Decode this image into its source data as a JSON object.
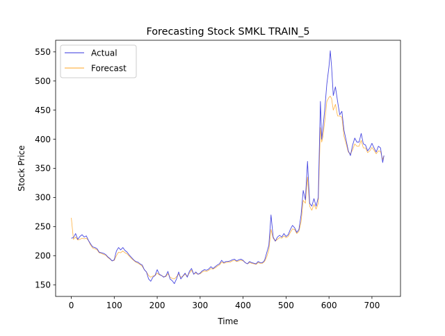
{
  "chart_data": {
    "type": "line",
    "title": "Forecasting Stock SMKL TRAIN_5",
    "xlabel": "Time",
    "ylabel": "Stock Price",
    "xlim": [
      -36.5,
      766.5
    ],
    "ylim": [
      130,
      570
    ],
    "xticks": [
      0,
      100,
      200,
      300,
      400,
      500,
      600,
      700
    ],
    "yticks": [
      150,
      200,
      250,
      300,
      350,
      400,
      450,
      500,
      550
    ],
    "legend_position": "upper-left",
    "grid": false,
    "series": [
      {
        "name": "Actual",
        "color": "#3333dd",
        "x": [
          0,
          5,
          10,
          15,
          20,
          25,
          30,
          35,
          40,
          45,
          50,
          55,
          60,
          65,
          70,
          75,
          80,
          85,
          90,
          95,
          100,
          105,
          110,
          115,
          120,
          125,
          130,
          135,
          140,
          145,
          150,
          155,
          160,
          165,
          170,
          175,
          180,
          185,
          190,
          195,
          200,
          205,
          210,
          215,
          220,
          225,
          230,
          235,
          240,
          245,
          250,
          255,
          260,
          265,
          270,
          275,
          280,
          285,
          290,
          295,
          300,
          305,
          310,
          315,
          320,
          325,
          330,
          335,
          340,
          345,
          350,
          355,
          360,
          365,
          370,
          375,
          380,
          385,
          390,
          395,
          400,
          405,
          410,
          415,
          420,
          425,
          430,
          435,
          440,
          445,
          450,
          455,
          460,
          465,
          470,
          475,
          480,
          485,
          490,
          495,
          500,
          505,
          510,
          515,
          520,
          525,
          530,
          535,
          540,
          545,
          550,
          555,
          560,
          565,
          570,
          575,
          580,
          583,
          586,
          590,
          595,
          600,
          603,
          606,
          610,
          615,
          620,
          625,
          630,
          635,
          640,
          645,
          650,
          655,
          660,
          665,
          670,
          675,
          680,
          685,
          690,
          695,
          700,
          705,
          710,
          715,
          720,
          725,
          728
        ],
        "values": [
          230,
          231,
          238,
          228,
          233,
          236,
          232,
          234,
          226,
          220,
          215,
          214,
          212,
          206,
          205,
          204,
          202,
          198,
          195,
          191,
          193,
          208,
          214,
          210,
          214,
          209,
          206,
          201,
          197,
          193,
          190,
          189,
          186,
          184,
          176,
          172,
          160,
          156,
          163,
          166,
          176,
          168,
          166,
          163,
          165,
          173,
          160,
          157,
          152,
          160,
          172,
          160,
          165,
          170,
          163,
          173,
          178,
          168,
          172,
          168,
          170,
          174,
          176,
          175,
          177,
          181,
          178,
          181,
          184,
          186,
          192,
          188,
          190,
          190,
          191,
          193,
          194,
          191,
          193,
          194,
          192,
          188,
          186,
          190,
          188,
          187,
          186,
          190,
          188,
          188,
          192,
          205,
          218,
          270,
          232,
          225,
          232,
          235,
          232,
          238,
          233,
          236,
          245,
          252,
          248,
          240,
          245,
          270,
          312,
          296,
          362,
          290,
          285,
          298,
          285,
          300,
          465,
          400,
          420,
          450,
          495,
          525,
          552,
          525,
          475,
          490,
          465,
          442,
          448,
          415,
          398,
          380,
          372,
          390,
          402,
          395,
          395,
          410,
          392,
          390,
          380,
          385,
          393,
          385,
          378,
          388,
          385,
          360,
          372
        ]
      },
      {
        "name": "Forecast",
        "color": "#ffa520",
        "x": [
          0,
          5,
          10,
          15,
          20,
          25,
          30,
          35,
          40,
          45,
          50,
          55,
          60,
          65,
          70,
          75,
          80,
          85,
          90,
          95,
          100,
          105,
          110,
          115,
          120,
          125,
          130,
          135,
          140,
          145,
          150,
          155,
          160,
          165,
          170,
          175,
          180,
          185,
          190,
          195,
          200,
          205,
          210,
          215,
          220,
          225,
          230,
          235,
          240,
          245,
          250,
          255,
          260,
          265,
          270,
          275,
          280,
          285,
          290,
          295,
          300,
          305,
          310,
          315,
          320,
          325,
          330,
          335,
          340,
          345,
          350,
          355,
          360,
          365,
          370,
          375,
          380,
          385,
          390,
          395,
          400,
          405,
          410,
          415,
          420,
          425,
          430,
          435,
          440,
          445,
          450,
          455,
          460,
          465,
          470,
          475,
          480,
          485,
          490,
          495,
          500,
          505,
          510,
          515,
          520,
          525,
          530,
          535,
          540,
          545,
          550,
          555,
          560,
          565,
          570,
          575,
          580,
          583,
          586,
          590,
          595,
          600,
          603,
          606,
          610,
          615,
          620,
          625,
          630,
          635,
          640,
          645,
          650,
          655,
          660,
          665,
          670,
          675,
          680,
          685,
          690,
          695,
          700,
          705,
          710,
          715,
          720,
          725,
          728
        ],
        "values": [
          265,
          228,
          232,
          227,
          228,
          230,
          229,
          230,
          226,
          218,
          213,
          212,
          210,
          205,
          204,
          202,
          201,
          197,
          194,
          191,
          192,
          200,
          206,
          205,
          208,
          205,
          203,
          199,
          195,
          192,
          189,
          187,
          185,
          182,
          176,
          172,
          166,
          163,
          165,
          166,
          170,
          167,
          166,
          164,
          164,
          169,
          163,
          161,
          160,
          164,
          168,
          163,
          165,
          168,
          165,
          170,
          175,
          169,
          170,
          168,
          169,
          172,
          174,
          173,
          175,
          178,
          177,
          179,
          182,
          184,
          189,
          187,
          188,
          189,
          189,
          191,
          192,
          190,
          191,
          192,
          191,
          188,
          186,
          188,
          187,
          186,
          185,
          188,
          187,
          187,
          190,
          198,
          210,
          245,
          230,
          225,
          228,
          231,
          230,
          234,
          231,
          233,
          240,
          246,
          245,
          238,
          242,
          258,
          295,
          290,
          335,
          285,
          278,
          288,
          280,
          290,
          420,
          395,
          405,
          430,
          465,
          472,
          474,
          470,
          450,
          460,
          440,
          440,
          438,
          405,
          392,
          378,
          375,
          382,
          392,
          388,
          388,
          398,
          385,
          385,
          377,
          380,
          386,
          381,
          375,
          380,
          379,
          365,
          372
        ]
      }
    ]
  }
}
